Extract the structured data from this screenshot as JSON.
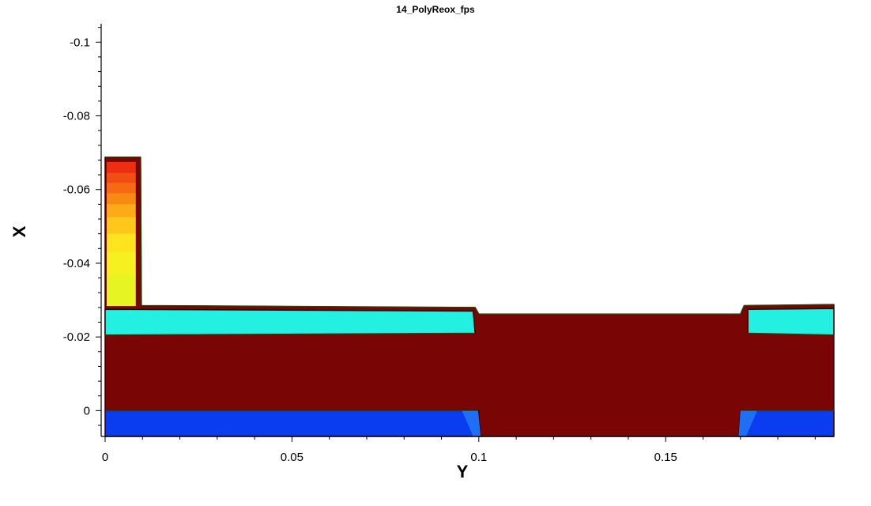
{
  "chart_data": {
    "type": "contour",
    "title": "14_PolyReox_fps",
    "xlabel": "Y",
    "ylabel": "X",
    "xlim": [
      0,
      0.195
    ],
    "ylim": [
      0.007,
      -0.105
    ],
    "y_axis_inverted": true,
    "x_ticks": [
      {
        "value": 0,
        "label": "0"
      },
      {
        "value": 0.05,
        "label": "0.05"
      },
      {
        "value": 0.1,
        "label": "0.1"
      },
      {
        "value": 0.15,
        "label": "0.15"
      }
    ],
    "y_ticks": [
      {
        "value": -0.1,
        "label": "-0.1"
      },
      {
        "value": -0.08,
        "label": "-0.08"
      },
      {
        "value": -0.06,
        "label": "-0.06"
      },
      {
        "value": -0.04,
        "label": "-0.04"
      },
      {
        "value": -0.02,
        "label": "-0.02"
      },
      {
        "value": 0,
        "label": "0"
      }
    ],
    "grid": false,
    "legend": "none",
    "colors": {
      "oxide": "#7a0505",
      "oxide_edge": "#3b0000",
      "nitride": "#23f0e0",
      "nitride_light": "#55f7ee",
      "silicon": "#0a3cf0",
      "silicon_light": "#1f6ff5",
      "outline": "#1a5a14",
      "axis": "#000000"
    },
    "regions": [
      {
        "name": "oxide",
        "color": "#7a0505",
        "polygon": [
          [
            0,
            -0.0688
          ],
          [
            0.0095,
            -0.0688
          ],
          [
            0.0097,
            -0.0285
          ],
          [
            0.099,
            -0.028
          ],
          [
            0.1,
            -0.0262
          ],
          [
            0.17,
            -0.0262
          ],
          [
            0.171,
            -0.0285
          ],
          [
            0.195,
            -0.0288
          ],
          [
            0.195,
            0.007
          ],
          [
            0.1,
            0.007
          ],
          [
            0.1,
            0.0
          ],
          [
            0.0,
            0.0
          ]
        ]
      },
      {
        "name": "nitride-left",
        "color": "#23f0e0",
        "polygon": [
          [
            0,
            -0.0275
          ],
          [
            0.0985,
            -0.027
          ],
          [
            0.099,
            -0.021
          ],
          [
            0,
            -0.0205
          ]
        ]
      },
      {
        "name": "nitride-right",
        "color": "#23f0e0",
        "polygon": [
          [
            0.172,
            -0.0275
          ],
          [
            0.195,
            -0.0277
          ],
          [
            0.195,
            -0.0205
          ],
          [
            0.172,
            -0.021
          ]
        ]
      },
      {
        "name": "silicon-left",
        "color": "#0a3cf0",
        "polygon": [
          [
            0,
            0.0
          ],
          [
            0.0998,
            0.0
          ],
          [
            0.1005,
            0.007
          ],
          [
            0,
            0.007
          ]
        ]
      },
      {
        "name": "silicon-right",
        "color": "#0a3cf0",
        "polygon": [
          [
            0.17,
            0.0
          ],
          [
            0.195,
            0.0
          ],
          [
            0.195,
            0.007
          ],
          [
            0.1695,
            0.007
          ]
        ]
      }
    ],
    "poly_gradient": {
      "name": "polysilicon-gate",
      "bounds": {
        "y0": 0.0004,
        "y1": 0.0082,
        "x_top": -0.0675,
        "x_bottom": -0.0285
      },
      "bands": [
        {
          "color": "#ee2e10",
          "x_to": -0.0645
        },
        {
          "color": "#f24d12",
          "x_to": -0.0618
        },
        {
          "color": "#f56a12",
          "x_to": -0.059
        },
        {
          "color": "#f88a14",
          "x_to": -0.056
        },
        {
          "color": "#fbab16",
          "x_to": -0.0525
        },
        {
          "color": "#fdc81a",
          "x_to": -0.048
        },
        {
          "color": "#fde41e",
          "x_to": -0.043
        },
        {
          "color": "#f6f020",
          "x_to": -0.037
        },
        {
          "color": "#e6f424",
          "x_to": -0.0285
        }
      ]
    }
  }
}
